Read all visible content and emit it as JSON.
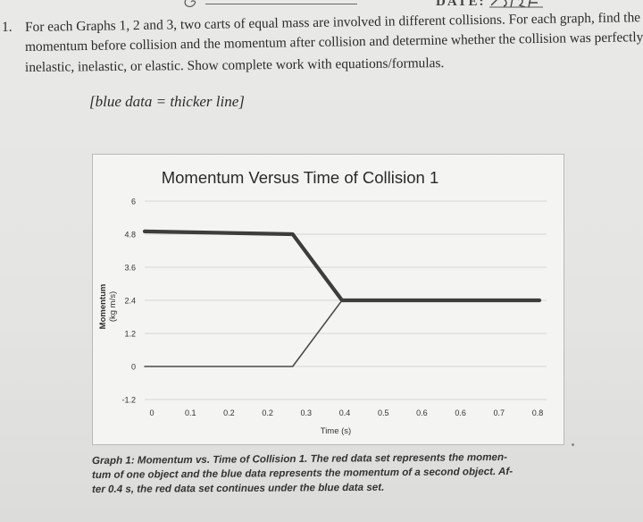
{
  "header": {
    "date_label": "DATE:"
  },
  "problem": {
    "number": "1.",
    "line1": "For each Graphs 1, 2 and 3, two carts of equal mass are involved in different collisions. For each graph, find the",
    "line2": "momentum before collision and the momentum after collision and determine whether the collision was perfectly",
    "line3": "inelastic, inelastic, or elastic. Show complete work with equations/formulas.",
    "hint": "[blue data = thicker line]"
  },
  "chart_data": {
    "type": "line",
    "title": "Momentum Versus Time of Collision 1",
    "xlabel": "Time (s)",
    "ylabel": "Momentum (kg m/s)",
    "ylabel_line1": "Momentum",
    "ylabel_line2": "(kg m/s)",
    "x_tick_labels": [
      "0",
      "0.1",
      "0.2",
      "0.2",
      "0.3",
      "0.4",
      "0.5",
      "0.6",
      "0.6",
      "0.7",
      "0.8"
    ],
    "y_tick_labels": [
      "6",
      "4.8",
      "3.6",
      "2.4",
      "1.2",
      "0",
      "-1.2"
    ],
    "ylim": [
      -1.2,
      6
    ],
    "xlim": [
      0,
      0.8
    ],
    "grid": true,
    "series": [
      {
        "color": "#3d3d3d",
        "thick": true,
        "x": [
          0,
          0.3,
          0.4,
          0.8
        ],
        "y": [
          4.9,
          4.8,
          2.4,
          2.4
        ]
      },
      {
        "color": "#4a4a4a",
        "thick": false,
        "x": [
          0,
          0.3,
          0.4
        ],
        "y": [
          0,
          0,
          2.4
        ]
      }
    ]
  },
  "caption": {
    "line1": "Graph 1: Momentum vs. Time of Collision 1. The red data set represents the momen-",
    "line2": "tum of one object and the blue data represents the momentum of a second object. Af-",
    "line3": "ter 0.4 s, the red data set continues under the blue data set."
  }
}
